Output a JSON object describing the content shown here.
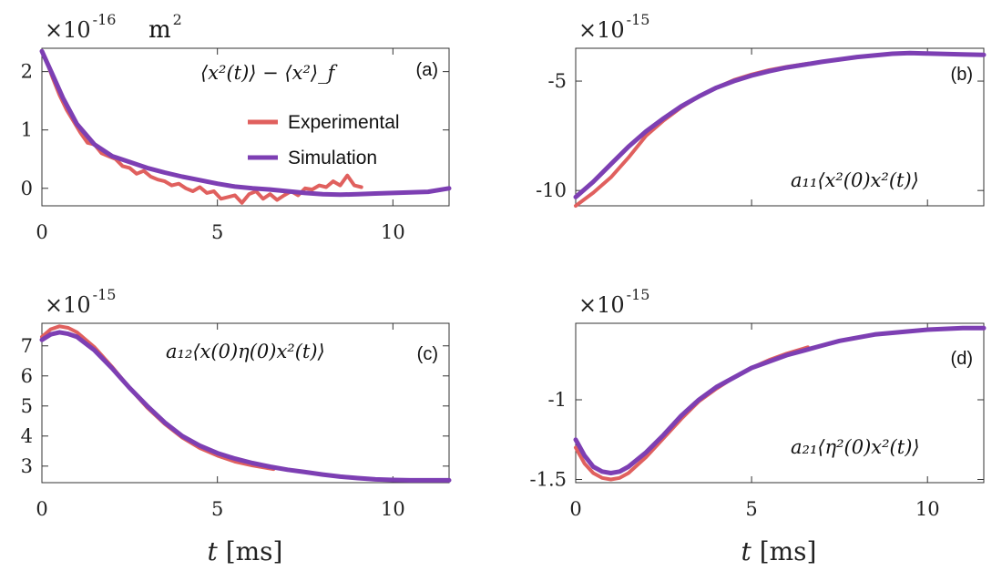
{
  "colors": {
    "experimental": "#E0605E",
    "simulation": "#7D3FB3",
    "axis": "#333333"
  },
  "legend": {
    "experimental": "Experimental",
    "simulation": "Simulation"
  },
  "xlabel": {
    "var": "t",
    "unit": "[ms]"
  },
  "chart_data": [
    {
      "type": "line",
      "panel": "(a)",
      "formula": "⟨x²(t)⟩ − ⟨x²⟩_f",
      "exponent_prefix": "×10",
      "exponent": "-16",
      "unit": "m",
      "unit_power": "2",
      "xlim": [
        0,
        11.6
      ],
      "ylim": [
        -0.3,
        2.4
      ],
      "xticks": [
        0,
        5,
        10
      ],
      "yticks": [
        0,
        1,
        2
      ],
      "ytick_labels": [
        "0",
        "1",
        "2"
      ],
      "show_xtick_labels": true,
      "series": [
        {
          "name": "Experimental",
          "x": [
            0,
            0.15,
            0.3,
            0.5,
            0.7,
            0.9,
            1.1,
            1.3,
            1.5,
            1.7,
            1.9,
            2.1,
            2.3,
            2.5,
            2.7,
            2.9,
            3.1,
            3.3,
            3.5,
            3.7,
            3.9,
            4.1,
            4.3,
            4.5,
            4.7,
            4.9,
            5.1,
            5.3,
            5.5,
            5.7,
            5.9,
            6.1,
            6.3,
            6.5,
            6.7,
            6.9,
            7.1,
            7.3,
            7.5,
            7.7,
            7.9,
            8.1,
            8.3,
            8.5,
            8.7,
            8.9,
            9.1
          ],
          "y": [
            2.35,
            2.15,
            1.9,
            1.6,
            1.35,
            1.15,
            0.95,
            0.78,
            0.75,
            0.6,
            0.55,
            0.5,
            0.38,
            0.35,
            0.25,
            0.3,
            0.2,
            0.15,
            0.12,
            0.05,
            0.08,
            0.0,
            -0.05,
            0.02,
            -0.08,
            -0.05,
            -0.18,
            -0.15,
            -0.12,
            -0.25,
            -0.1,
            -0.05,
            -0.18,
            -0.1,
            -0.2,
            -0.12,
            -0.05,
            -0.12,
            0.0,
            -0.02,
            0.05,
            0.02,
            0.12,
            0.05,
            0.22,
            0.05,
            0.02
          ]
        },
        {
          "name": "Simulation",
          "x": [
            0,
            0.3,
            0.6,
            1.0,
            1.5,
            2.0,
            2.5,
            3.0,
            3.5,
            4.0,
            4.5,
            5.0,
            5.5,
            6.0,
            6.5,
            7.0,
            7.5,
            8.0,
            8.5,
            9.0,
            9.5,
            10.0,
            10.5,
            11.0,
            11.6
          ],
          "y": [
            2.35,
            1.95,
            1.55,
            1.1,
            0.75,
            0.55,
            0.45,
            0.35,
            0.27,
            0.2,
            0.14,
            0.08,
            0.03,
            0.0,
            -0.02,
            -0.05,
            -0.08,
            -0.1,
            -0.11,
            -0.1,
            -0.09,
            -0.08,
            -0.07,
            -0.06,
            0.0
          ]
        }
      ]
    },
    {
      "type": "line",
      "panel": "(b)",
      "formula": "a₁₁⟨x²(0)x²(t)⟩",
      "exponent_prefix": "×10",
      "exponent": "-15",
      "xlim": [
        0,
        11.6
      ],
      "ylim": [
        -10.7,
        -3.5
      ],
      "xticks": [
        0,
        5,
        10
      ],
      "yticks": [
        -10,
        -5
      ],
      "ytick_labels": [
        "-10",
        "-5"
      ],
      "show_xtick_labels": false,
      "series": [
        {
          "name": "Experimental",
          "x": [
            0,
            0.5,
            1.0,
            1.5,
            2.0,
            2.5,
            3.0,
            3.5,
            4.0,
            4.5,
            5.0,
            5.5,
            6.0,
            6.6
          ],
          "y": [
            -10.7,
            -10.1,
            -9.4,
            -8.5,
            -7.5,
            -6.8,
            -6.2,
            -5.7,
            -5.3,
            -4.95,
            -4.7,
            -4.5,
            -4.35,
            -4.2
          ]
        },
        {
          "name": "Simulation",
          "x": [
            0,
            0.5,
            1.0,
            1.5,
            2.0,
            2.5,
            3.0,
            3.5,
            4.0,
            4.5,
            5.0,
            5.5,
            6.0,
            6.5,
            7.0,
            8.0,
            9.0,
            9.5,
            10.0,
            11.0,
            11.6
          ],
          "y": [
            -10.3,
            -9.6,
            -8.8,
            -8.0,
            -7.3,
            -6.7,
            -6.15,
            -5.7,
            -5.3,
            -5.0,
            -4.75,
            -4.55,
            -4.38,
            -4.25,
            -4.12,
            -3.9,
            -3.75,
            -3.72,
            -3.74,
            -3.78,
            -3.8
          ]
        }
      ]
    },
    {
      "type": "line",
      "panel": "(c)",
      "formula": "a₁₂⟨x(0)η(0)x²(t)⟩",
      "exponent_prefix": "×10",
      "exponent": "-15",
      "xlim": [
        0,
        11.6
      ],
      "ylim": [
        2.45,
        7.75
      ],
      "xticks": [
        0,
        5,
        10
      ],
      "yticks": [
        3,
        4,
        5,
        6,
        7
      ],
      "ytick_labels": [
        "3",
        "4",
        "5",
        "6",
        "7"
      ],
      "show_xtick_labels": true,
      "series": [
        {
          "name": "Experimental",
          "x": [
            0,
            0.25,
            0.5,
            0.75,
            1.0,
            1.5,
            2.0,
            2.5,
            3.0,
            3.5,
            4.0,
            4.5,
            5.0,
            5.5,
            6.0,
            6.6
          ],
          "y": [
            7.3,
            7.55,
            7.65,
            7.6,
            7.45,
            6.95,
            6.3,
            5.6,
            4.95,
            4.4,
            3.95,
            3.6,
            3.35,
            3.15,
            3.02,
            2.9
          ]
        },
        {
          "name": "Simulation",
          "x": [
            0,
            0.25,
            0.5,
            0.75,
            1.0,
            1.5,
            2.0,
            2.5,
            3.0,
            3.5,
            4.0,
            4.5,
            5.0,
            5.5,
            6.0,
            6.5,
            7.0,
            7.5,
            8.0,
            8.5,
            9.0,
            9.5,
            10.0,
            10.5,
            11.0,
            11.6
          ],
          "y": [
            7.2,
            7.38,
            7.45,
            7.4,
            7.3,
            6.85,
            6.25,
            5.6,
            5.0,
            4.45,
            4.0,
            3.68,
            3.43,
            3.25,
            3.1,
            2.98,
            2.88,
            2.8,
            2.72,
            2.65,
            2.6,
            2.56,
            2.54,
            2.53,
            2.53,
            2.53
          ]
        }
      ]
    },
    {
      "type": "line",
      "panel": "(d)",
      "formula": "a₂₁⟨η²(0)x²(t)⟩",
      "exponent_prefix": "×10",
      "exponent": "-15",
      "xlim": [
        0,
        11.6
      ],
      "ylim": [
        -1.52,
        -0.52
      ],
      "xticks": [
        0,
        5,
        10
      ],
      "yticks": [
        -1.5,
        -1
      ],
      "ytick_labels": [
        "-1.5",
        "-1"
      ],
      "show_xtick_labels": true,
      "series": [
        {
          "name": "Experimental",
          "x": [
            0,
            0.25,
            0.5,
            0.75,
            1.0,
            1.25,
            1.5,
            2.0,
            2.5,
            3.0,
            3.5,
            4.0,
            4.5,
            5.0,
            5.5,
            6.0,
            6.6
          ],
          "y": [
            -1.3,
            -1.4,
            -1.46,
            -1.49,
            -1.5,
            -1.49,
            -1.46,
            -1.36,
            -1.24,
            -1.12,
            -1.01,
            -0.93,
            -0.86,
            -0.8,
            -0.75,
            -0.71,
            -0.67
          ]
        },
        {
          "name": "Simulation",
          "x": [
            0,
            0.25,
            0.5,
            0.75,
            1.0,
            1.25,
            1.5,
            2.0,
            2.5,
            3.0,
            3.5,
            4.0,
            4.5,
            5.0,
            5.5,
            6.0,
            6.5,
            7.0,
            7.5,
            8.0,
            8.5,
            9.0,
            9.5,
            10.0,
            10.5,
            11.0,
            11.6
          ],
          "y": [
            -1.25,
            -1.35,
            -1.42,
            -1.45,
            -1.46,
            -1.45,
            -1.42,
            -1.33,
            -1.22,
            -1.1,
            -1.0,
            -0.92,
            -0.86,
            -0.8,
            -0.76,
            -0.72,
            -0.69,
            -0.66,
            -0.63,
            -0.61,
            -0.59,
            -0.58,
            -0.57,
            -0.56,
            -0.555,
            -0.55,
            -0.55
          ]
        }
      ]
    }
  ]
}
